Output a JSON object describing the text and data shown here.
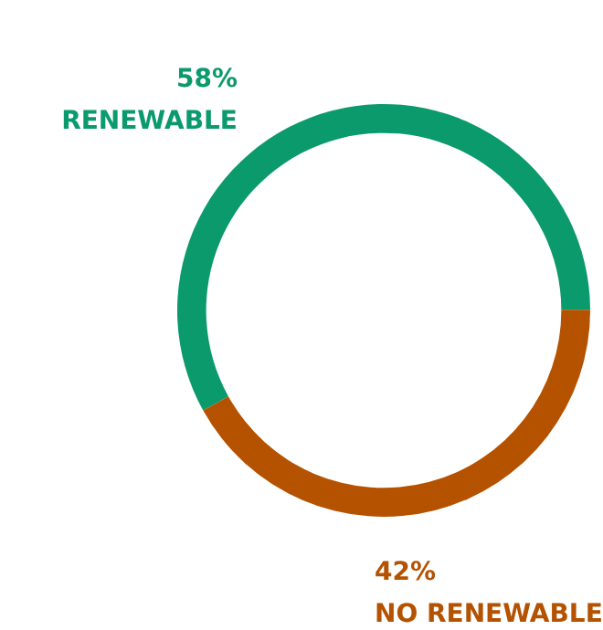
{
  "chart_data": {
    "type": "donut",
    "categories": [
      "RENEWABLE",
      "NO RENEWABLE"
    ],
    "values": [
      58,
      42
    ],
    "value_labels": [
      "58%",
      "42%"
    ],
    "colors": [
      "#0a9a6c",
      "#b45200"
    ],
    "legend": false
  }
}
